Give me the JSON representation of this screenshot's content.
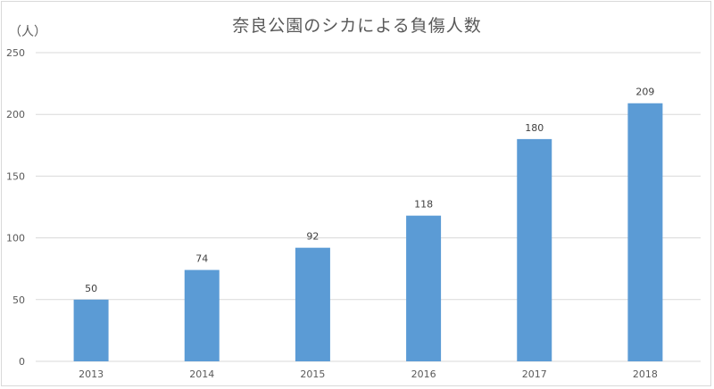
{
  "chart_data": {
    "type": "bar",
    "title": "奈良公園のシカによる負傷人数",
    "ylabel": "（人）",
    "xlabel": "",
    "categories": [
      "2013",
      "2014",
      "2015",
      "2016",
      "2017",
      "2018"
    ],
    "values": [
      50,
      74,
      92,
      118,
      180,
      209
    ],
    "data_labels": [
      "50",
      "74",
      "92",
      "118",
      "180",
      "209"
    ],
    "ylim": [
      0,
      250
    ],
    "yticks": [
      "0",
      "50",
      "100",
      "150",
      "200",
      "250"
    ],
    "grid": true,
    "legend": "none",
    "bar_color": "#5b9bd5",
    "grid_color": "#d9d9d9"
  }
}
